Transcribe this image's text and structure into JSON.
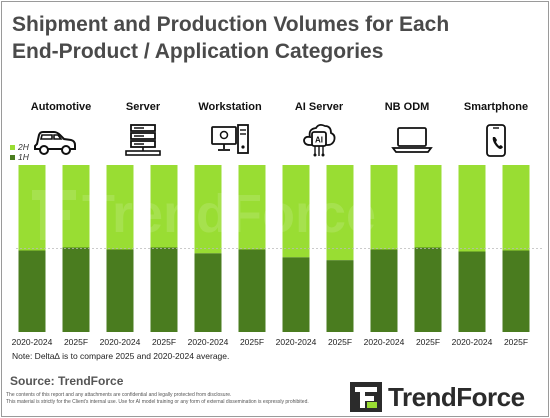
{
  "title_lines": [
    "Shipment and Production Volumes for Each",
    "End-Product / Application Categories"
  ],
  "legend": [
    {
      "name": "2H",
      "color": "#99dd33"
    },
    {
      "name": "1H",
      "color": "#4a7c1f"
    }
  ],
  "note": "Note: Delta∆ is to compare 2025 and 2020-2024 average.",
  "source": "Source: TrendForce",
  "disclaimer": [
    "The contents of this report and any attachments are confidential and legally protected from disclosure.",
    "This material is strictly for the Client's internal use. Use for AI model training or any form of external dissemination is expressly prohibited."
  ],
  "brand": "TrendForce",
  "watermark": "TrendForce",
  "icons": [
    "car-icon",
    "server-icon",
    "workstation-icon",
    "ai-server-icon",
    "laptop-icon",
    "smartphone-icon"
  ],
  "chart_data": {
    "type": "bar",
    "stacked": true,
    "normalized": true,
    "groups": [
      "Automotive",
      "Server",
      "Workstation",
      "AI Server",
      "NB ODM",
      "Smartphone"
    ],
    "categories": [
      "2020-2024",
      "2025F",
      "2020-2024",
      "2025F",
      "2020-2024",
      "2025F",
      "2020-2024",
      "2025F",
      "2020-2024",
      "2025F",
      "2020-2024",
      "2025F"
    ],
    "series": [
      {
        "name": "1H",
        "color": "#4a7c1f",
        "values": [
          0.488,
          0.506,
          0.494,
          0.506,
          0.471,
          0.494,
          0.447,
          0.43,
          0.494,
          0.506,
          0.482,
          0.488
        ]
      },
      {
        "name": "2H",
        "color": "#99dd33",
        "values": [
          0.512,
          0.494,
          0.506,
          0.494,
          0.529,
          0.506,
          0.553,
          0.57,
          0.506,
          0.494,
          0.518,
          0.512
        ]
      }
    ],
    "ylim": [
      0,
      1
    ],
    "reference_line": 0.5,
    "grid": false
  }
}
